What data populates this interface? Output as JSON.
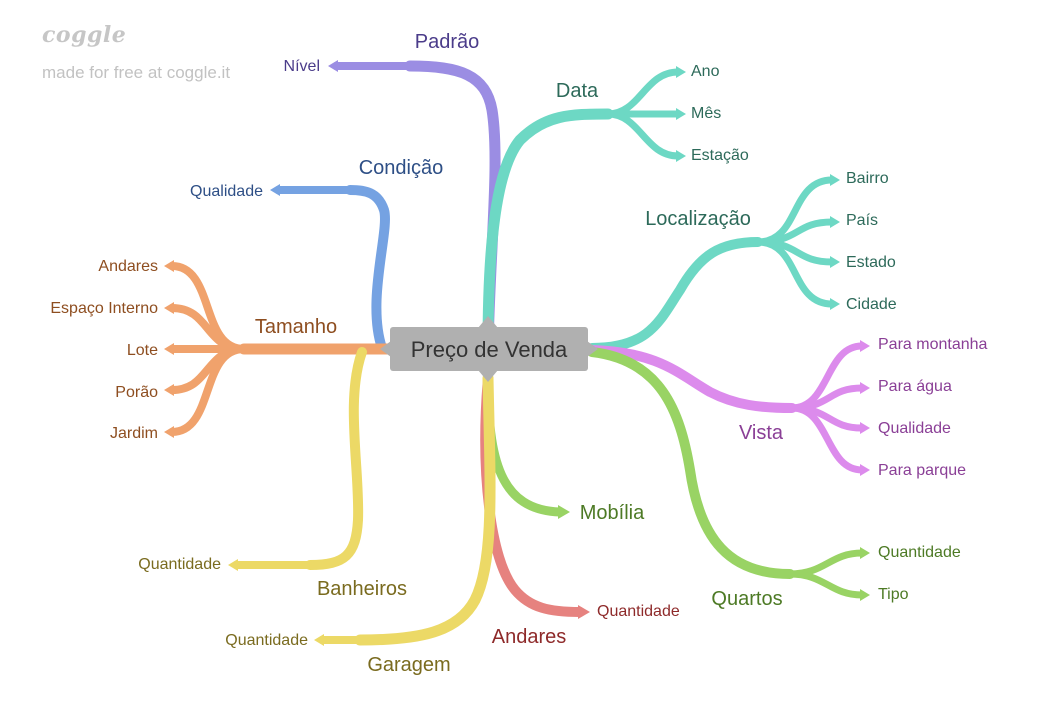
{
  "logo": {
    "word": "coggle",
    "tagline": "made for free at coggle.it"
  },
  "root": "Preço de Venda",
  "colors": {
    "purple": "#9b8de3",
    "teal": "#6dd8c4",
    "blue": "#75a2e2",
    "orange": "#f0a26c",
    "yellow": "#ecd966",
    "green": "#99d364",
    "pink": "#dc8bec",
    "red": "#e6827f",
    "text_purple": "#4b3c8a",
    "text_teal": "#2d6a5a",
    "text_blue": "#2e4f86",
    "text_orange": "#8e4e20",
    "text_olive": "#7a6b1f",
    "text_green": "#4d7a25",
    "text_pink": "#8a3f96",
    "text_red": "#8e2a2a"
  },
  "branches": {
    "padrao": {
      "label": "Padrão",
      "children": [
        "Nível"
      ]
    },
    "data": {
      "label": "Data",
      "children": [
        "Ano",
        "Mês",
        "Estação"
      ]
    },
    "condicao": {
      "label": "Condição",
      "children": [
        "Qualidade"
      ]
    },
    "localizacao": {
      "label": "Localização",
      "children": [
        "Bairro",
        "País",
        "Estado",
        "Cidade"
      ]
    },
    "tamanho": {
      "label": "Tamanho",
      "children": [
        "Andares",
        "Espaço Interno",
        "Lote",
        "Porão",
        "Jardim"
      ]
    },
    "vista": {
      "label": "Vista",
      "children": [
        "Para montanha",
        "Para água",
        "Qualidade",
        "Para parque"
      ]
    },
    "mobilia": {
      "label": "Mobília",
      "children": []
    },
    "quartos": {
      "label": "Quartos",
      "children": [
        "Quantidade",
        "Tipo"
      ]
    },
    "banheiros": {
      "label": "Banheiros",
      "children": [
        "Quantidade"
      ]
    },
    "andares": {
      "label": "Andares",
      "children": [
        "Quantidade"
      ]
    },
    "garagem": {
      "label": "Garagem",
      "children": [
        "Quantidade"
      ]
    }
  }
}
